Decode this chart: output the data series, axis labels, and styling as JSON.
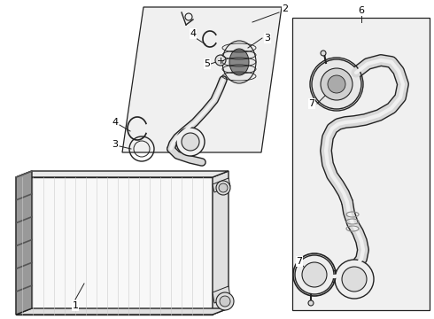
{
  "bg_color": "#ffffff",
  "line_color": "#222222",
  "gray1": "#cccccc",
  "gray2": "#aaaaaa",
  "gray3": "#888888",
  "light_fill": "#f0f0f0",
  "box_fill": "#eeeeee"
}
